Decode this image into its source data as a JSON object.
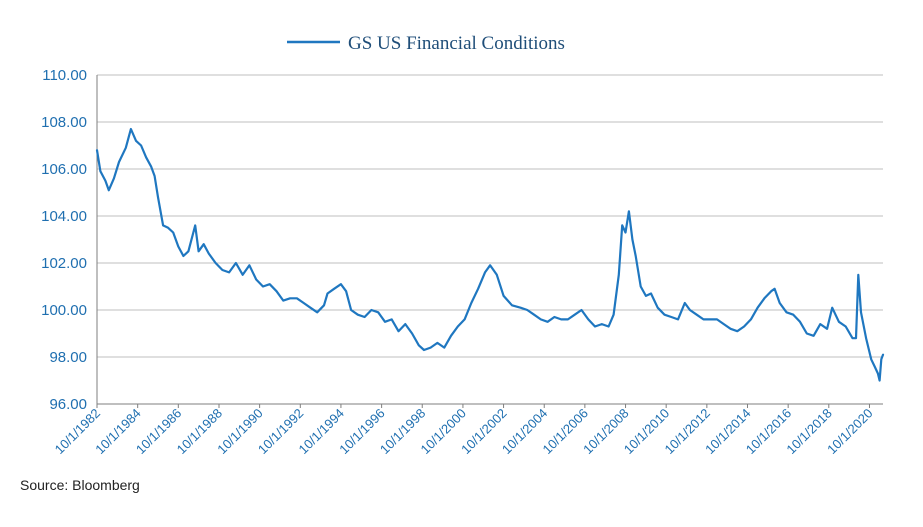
{
  "chart_data": {
    "type": "line",
    "series_color": "#1f77c0",
    "text_color": "#1f6fb0",
    "legend_position": "top-center",
    "grid": true,
    "ylim": [
      96,
      110
    ],
    "yticks": [
      "96.00",
      "98.00",
      "100.00",
      "102.00",
      "104.00",
      "106.00",
      "108.00",
      "110.00"
    ],
    "xlim": [
      "1982-10-01",
      "2021-06-01"
    ],
    "xticks": [
      "10/1/1982",
      "10/1/1984",
      "10/1/1986",
      "10/1/1988",
      "10/1/1990",
      "10/1/1992",
      "10/1/1994",
      "10/1/1996",
      "10/1/1998",
      "10/1/2000",
      "10/1/2002",
      "10/1/2004",
      "10/1/2006",
      "10/1/2008",
      "10/1/2010",
      "10/1/2012",
      "10/1/2014",
      "10/1/2016",
      "10/1/2018",
      "10/1/2020"
    ],
    "series": [
      {
        "name": "GS US Financial Conditions",
        "points": [
          [
            "1982-10-01",
            106.8
          ],
          [
            "1982-12-01",
            105.9
          ],
          [
            "1983-03-01",
            105.5
          ],
          [
            "1983-05-01",
            105.1
          ],
          [
            "1983-08-01",
            105.6
          ],
          [
            "1983-11-01",
            106.3
          ],
          [
            "1984-03-01",
            106.9
          ],
          [
            "1984-06-01",
            107.7
          ],
          [
            "1984-09-01",
            107.2
          ],
          [
            "1984-12-01",
            107.0
          ],
          [
            "1985-03-01",
            106.5
          ],
          [
            "1985-06-01",
            106.1
          ],
          [
            "1985-08-01",
            105.7
          ],
          [
            "1985-10-01",
            104.8
          ],
          [
            "1986-01-01",
            103.6
          ],
          [
            "1986-04-01",
            103.5
          ],
          [
            "1986-07-01",
            103.3
          ],
          [
            "1986-10-01",
            102.7
          ],
          [
            "1987-01-01",
            102.3
          ],
          [
            "1987-04-01",
            102.5
          ],
          [
            "1987-08-01",
            103.6
          ],
          [
            "1987-10-01",
            102.5
          ],
          [
            "1988-01-01",
            102.8
          ],
          [
            "1988-04-01",
            102.4
          ],
          [
            "1988-08-01",
            102.0
          ],
          [
            "1988-12-01",
            101.7
          ],
          [
            "1989-04-01",
            101.6
          ],
          [
            "1989-08-01",
            102.0
          ],
          [
            "1989-12-01",
            101.5
          ],
          [
            "1990-04-01",
            101.9
          ],
          [
            "1990-08-01",
            101.3
          ],
          [
            "1990-12-01",
            101.0
          ],
          [
            "1991-04-01",
            101.1
          ],
          [
            "1991-08-01",
            100.8
          ],
          [
            "1991-12-01",
            100.4
          ],
          [
            "1992-04-01",
            100.5
          ],
          [
            "1992-08-01",
            100.5
          ],
          [
            "1992-12-01",
            100.3
          ],
          [
            "1993-04-01",
            100.1
          ],
          [
            "1993-08-01",
            99.9
          ],
          [
            "1993-12-01",
            100.2
          ],
          [
            "1994-02-01",
            100.7
          ],
          [
            "1994-06-01",
            100.9
          ],
          [
            "1994-10-01",
            101.1
          ],
          [
            "1995-01-01",
            100.8
          ],
          [
            "1995-04-01",
            100.0
          ],
          [
            "1995-08-01",
            99.8
          ],
          [
            "1995-12-01",
            99.7
          ],
          [
            "1996-04-01",
            100.0
          ],
          [
            "1996-08-01",
            99.9
          ],
          [
            "1996-12-01",
            99.5
          ],
          [
            "1997-04-01",
            99.6
          ],
          [
            "1997-08-01",
            99.1
          ],
          [
            "1997-12-01",
            99.4
          ],
          [
            "1998-04-01",
            99.0
          ],
          [
            "1998-08-01",
            98.5
          ],
          [
            "1998-11-01",
            98.3
          ],
          [
            "1999-03-01",
            98.4
          ],
          [
            "1999-07-01",
            98.6
          ],
          [
            "1999-11-01",
            98.4
          ],
          [
            "2000-03-01",
            98.9
          ],
          [
            "2000-07-01",
            99.3
          ],
          [
            "2000-11-01",
            99.6
          ],
          [
            "2001-03-01",
            100.3
          ],
          [
            "2001-07-01",
            100.9
          ],
          [
            "2001-11-01",
            101.6
          ],
          [
            "2002-02-01",
            101.9
          ],
          [
            "2002-06-01",
            101.5
          ],
          [
            "2002-10-01",
            100.6
          ],
          [
            "2003-03-01",
            100.2
          ],
          [
            "2003-08-01",
            100.1
          ],
          [
            "2003-12-01",
            100.0
          ],
          [
            "2004-04-01",
            99.8
          ],
          [
            "2004-08-01",
            99.6
          ],
          [
            "2004-12-01",
            99.5
          ],
          [
            "2005-04-01",
            99.7
          ],
          [
            "2005-08-01",
            99.6
          ],
          [
            "2005-12-01",
            99.6
          ],
          [
            "2006-04-01",
            99.8
          ],
          [
            "2006-08-01",
            100.0
          ],
          [
            "2006-12-01",
            99.6
          ],
          [
            "2007-04-01",
            99.3
          ],
          [
            "2007-08-01",
            99.4
          ],
          [
            "2007-12-01",
            99.3
          ],
          [
            "2008-03-01",
            99.8
          ],
          [
            "2008-06-01",
            101.5
          ],
          [
            "2008-08-01",
            103.6
          ],
          [
            "2008-10-01",
            103.3
          ],
          [
            "2008-12-01",
            104.2
          ],
          [
            "2009-02-01",
            103.0
          ],
          [
            "2009-04-01",
            102.3
          ],
          [
            "2009-07-01",
            101.0
          ],
          [
            "2009-10-01",
            100.6
          ],
          [
            "2010-01-01",
            100.7
          ],
          [
            "2010-05-01",
            100.1
          ],
          [
            "2010-09-01",
            99.8
          ],
          [
            "2011-01-01",
            99.7
          ],
          [
            "2011-05-01",
            99.6
          ],
          [
            "2011-09-01",
            100.3
          ],
          [
            "2011-12-01",
            100.0
          ],
          [
            "2012-04-01",
            99.8
          ],
          [
            "2012-08-01",
            99.6
          ],
          [
            "2012-12-01",
            99.6
          ],
          [
            "2013-04-01",
            99.6
          ],
          [
            "2013-08-01",
            99.4
          ],
          [
            "2013-12-01",
            99.2
          ],
          [
            "2014-04-01",
            99.1
          ],
          [
            "2014-08-01",
            99.3
          ],
          [
            "2014-12-01",
            99.6
          ],
          [
            "2015-04-01",
            100.1
          ],
          [
            "2015-08-01",
            100.5
          ],
          [
            "2015-12-01",
            100.8
          ],
          [
            "2016-02-01",
            100.9
          ],
          [
            "2016-05-01",
            100.3
          ],
          [
            "2016-09-01",
            99.9
          ],
          [
            "2017-01-01",
            99.8
          ],
          [
            "2017-05-01",
            99.5
          ],
          [
            "2017-09-01",
            99.0
          ],
          [
            "2018-01-01",
            98.9
          ],
          [
            "2018-05-01",
            99.4
          ],
          [
            "2018-09-01",
            99.2
          ],
          [
            "2018-12-01",
            100.1
          ],
          [
            "2019-04-01",
            99.5
          ],
          [
            "2019-08-01",
            99.3
          ],
          [
            "2019-12-01",
            98.8
          ],
          [
            "2020-02-01",
            98.8
          ],
          [
            "2020-03-15",
            101.5
          ],
          [
            "2020-05-01",
            99.9
          ],
          [
            "2020-08-01",
            98.8
          ],
          [
            "2020-11-01",
            97.9
          ],
          [
            "2021-01-01",
            97.6
          ],
          [
            "2021-03-01",
            97.3
          ],
          [
            "2021-04-01",
            97.0
          ],
          [
            "2021-05-01",
            97.9
          ],
          [
            "2021-06-01",
            98.1
          ]
        ]
      }
    ]
  },
  "source_text": "Source: Bloomberg"
}
